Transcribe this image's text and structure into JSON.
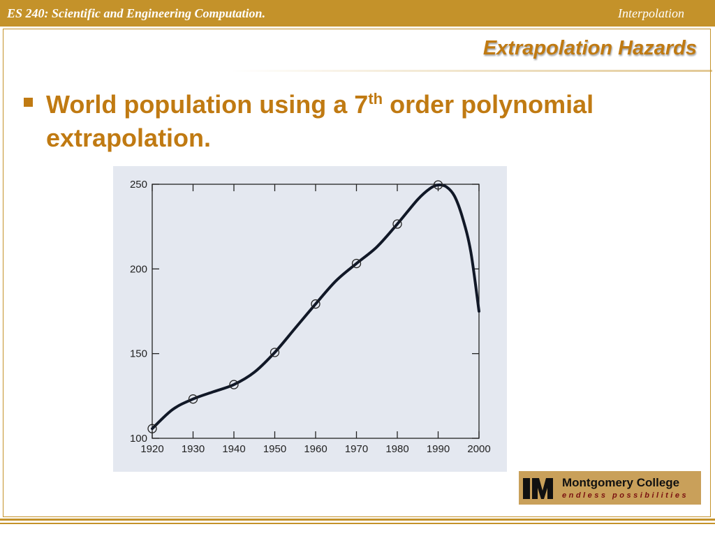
{
  "header": {
    "course": "ES 240: Scientific and Engineering Computation.",
    "topic": "Interpolation"
  },
  "slide": {
    "title": "Extrapolation Hazards",
    "bullet_pre": "World population using a 7",
    "bullet_sup": "th",
    "bullet_post": " order polynomial extrapolation."
  },
  "logo": {
    "name": "Montgomery College",
    "tagline": "endless possibilities"
  },
  "colors": {
    "accent": "#c4922a",
    "text_accent": "#c07a12",
    "chart_bg": "#e4e8f0",
    "curve": "#111827"
  },
  "chart_data": {
    "type": "line",
    "title": "",
    "xlabel": "",
    "ylabel": "",
    "xlim": [
      1920,
      2000
    ],
    "ylim": [
      100,
      250
    ],
    "xticks": [
      1920,
      1930,
      1940,
      1950,
      1960,
      1970,
      1980,
      1990,
      2000
    ],
    "yticks": [
      100,
      150,
      200,
      250
    ],
    "grid": false,
    "points": {
      "x": [
        1920,
        1930,
        1940,
        1950,
        1960,
        1970,
        1980,
        1990
      ],
      "y": [
        105.7,
        123.2,
        131.7,
        150.7,
        179.3,
        203.2,
        226.5,
        249.6
      ]
    },
    "curve": {
      "x": [
        1920,
        1925,
        1930,
        1935,
        1940,
        1945,
        1950,
        1955,
        1960,
        1965,
        1970,
        1975,
        1980,
        1985,
        1988,
        1990,
        1992,
        1994,
        1996,
        1998,
        2000
      ],
      "y": [
        105.7,
        117,
        123.2,
        127.5,
        131.7,
        139,
        150.7,
        165,
        179.3,
        193,
        203.2,
        213,
        226.5,
        241,
        247.5,
        249.6,
        248.5,
        243,
        230,
        210,
        175
      ]
    }
  }
}
